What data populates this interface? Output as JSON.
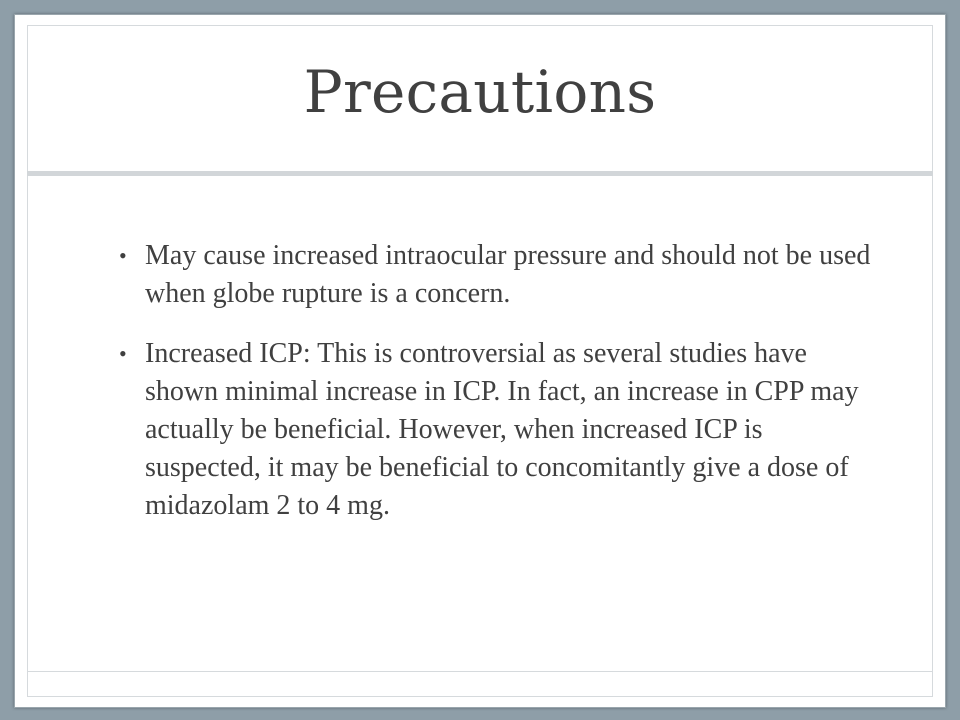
{
  "slide": {
    "title": "Precautions",
    "bullets": [
      {
        "text": "May cause increased intraocular pressure and should not be used when globe rupture is a concern."
      },
      {
        "text": "Increased ICP:  This is controversial as several studies have shown minimal increase in ICP.  In fact, an increase in CPP may actually be beneficial.  However, when increased ICP is suspected, it may be beneficial to concomitantly give a dose of midazolam 2 to 4 mg."
      }
    ],
    "bullet_glyph": "•"
  },
  "colors": {
    "background_frame": "#8e9ea8",
    "slide_background": "#ffffff",
    "text": "#404040",
    "divider": "#d2d6d9"
  }
}
